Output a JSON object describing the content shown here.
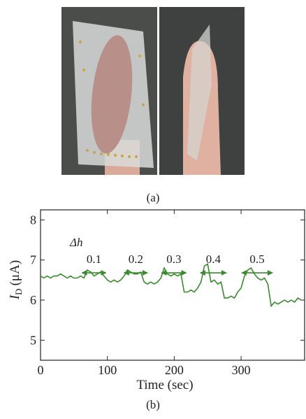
{
  "panel_labels": {
    "a": "(a)",
    "b": "(b)"
  },
  "chart_data": {
    "type": "line",
    "xlabel": "Time (sec)",
    "ylabel_symbol": "I",
    "ylabel_subscript": "D",
    "ylabel_unit": "(μA)",
    "xlim": [
      0,
      395
    ],
    "ylim": [
      4.5,
      8.25
    ],
    "xticks": [
      0,
      100,
      200,
      300
    ],
    "yticks": [
      5,
      6,
      7,
      8
    ],
    "x": [
      0,
      5,
      10,
      15,
      20,
      25,
      30,
      35,
      40,
      45,
      50,
      55,
      60,
      65,
      70,
      75,
      80,
      85,
      90,
      95,
      100,
      105,
      110,
      115,
      120,
      125,
      130,
      135,
      140,
      145,
      150,
      155,
      160,
      165,
      170,
      175,
      180,
      185,
      190,
      195,
      200,
      205,
      210,
      215,
      220,
      225,
      230,
      235,
      240,
      245,
      250,
      255,
      260,
      265,
      270,
      275,
      280,
      285,
      290,
      295,
      300,
      305,
      310,
      315,
      320,
      325,
      330,
      335,
      340,
      345,
      350,
      355,
      360,
      365,
      370,
      375,
      380,
      385,
      390
    ],
    "series": [
      {
        "color": "#3a8a2e",
        "values": [
          6.6,
          6.55,
          6.6,
          6.55,
          6.6,
          6.6,
          6.65,
          6.6,
          6.55,
          6.6,
          6.55,
          6.55,
          6.6,
          6.55,
          6.75,
          6.7,
          6.6,
          6.65,
          6.7,
          6.6,
          6.5,
          6.45,
          6.5,
          6.45,
          6.5,
          6.6,
          6.75,
          6.7,
          6.65,
          6.65,
          6.7,
          6.45,
          6.4,
          6.45,
          6.4,
          6.45,
          6.55,
          6.8,
          6.65,
          6.6,
          6.65,
          6.6,
          6.65,
          6.2,
          6.2,
          6.25,
          6.2,
          6.3,
          6.45,
          6.85,
          6.9,
          6.45,
          6.5,
          6.4,
          6.45,
          6.05,
          6.05,
          6.1,
          6.05,
          6.2,
          6.3,
          6.6,
          6.75,
          6.8,
          6.65,
          6.55,
          6.5,
          6.55,
          6.4,
          5.85,
          5.95,
          5.9,
          5.95,
          6.0,
          5.95,
          6.0,
          5.95,
          6.05,
          6.0
        ]
      }
    ],
    "delta_label": "Δh",
    "annotations": [
      {
        "label": "0.1",
        "x": [
          62,
          98
        ],
        "y": 6.68
      },
      {
        "label": "0.2",
        "x": [
          125,
          160
        ],
        "y": 6.68
      },
      {
        "label": "0.3",
        "x": [
          181,
          218
        ],
        "y": 6.68
      },
      {
        "label": "0.4",
        "x": [
          239,
          278
        ],
        "y": 6.68
      },
      {
        "label": "0.5",
        "x": [
          301,
          347
        ],
        "y": 6.68
      }
    ],
    "arrow_color": "#3a8a2e"
  }
}
